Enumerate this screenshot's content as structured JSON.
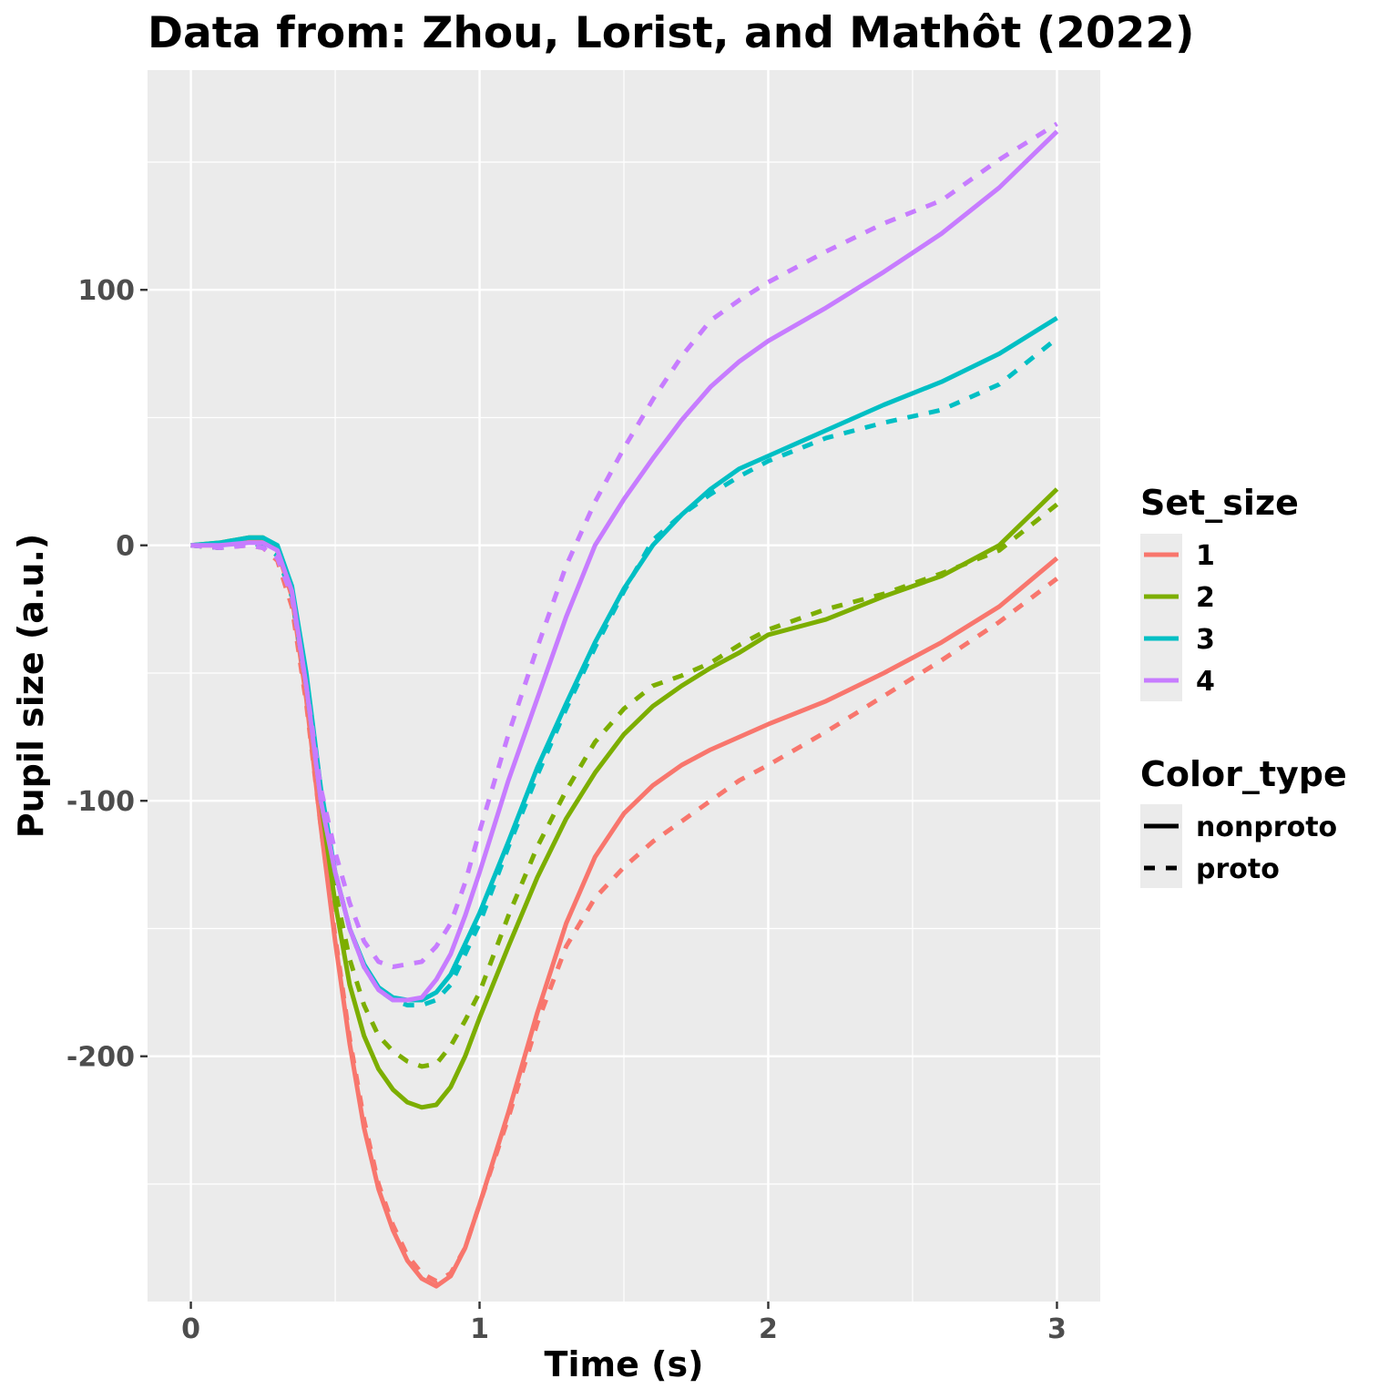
{
  "chart_data": {
    "type": "line",
    "title": "Data from: Zhou, Lorist, and Mathôt (2022)",
    "xlabel": "Time (s)",
    "ylabel": "Pupil size (a.u.)",
    "xlim": [
      -0.15,
      3.15
    ],
    "ylim": [
      -296,
      186
    ],
    "x_ticks": [
      0,
      1,
      2,
      3
    ],
    "y_ticks": [
      100,
      0,
      -100,
      -200
    ],
    "x_tick_labels": [
      "0",
      "1",
      "2",
      "3"
    ],
    "y_tick_labels": [
      "100",
      "0",
      "-100",
      "-200"
    ],
    "grid": true,
    "legend_position": "right",
    "colors": {
      "panel_bg": "#ebebeb",
      "grid": "#ffffff",
      "tick": "#333333",
      "1": "#f8766d",
      "2": "#7cae00",
      "3": "#00bfc4",
      "4": "#c77cff"
    },
    "legends": {
      "set_size": {
        "title": "Set_size",
        "items": [
          "1",
          "2",
          "3",
          "4"
        ]
      },
      "color_type": {
        "title": "Color_type",
        "items": [
          "nonproto",
          "proto"
        ]
      }
    },
    "x": [
      0,
      0.1,
      0.2,
      0.25,
      0.3,
      0.35,
      0.4,
      0.45,
      0.5,
      0.55,
      0.6,
      0.65,
      0.7,
      0.75,
      0.8,
      0.85,
      0.9,
      0.95,
      1.0,
      1.1,
      1.2,
      1.3,
      1.4,
      1.5,
      1.6,
      1.7,
      1.8,
      1.9,
      2.0,
      2.2,
      2.4,
      2.6,
      2.8,
      3.0
    ],
    "series": [
      {
        "set_size": "1",
        "color_type": "nonproto",
        "values": [
          0,
          0,
          2,
          2,
          -2,
          -20,
          -60,
          -110,
          -155,
          -195,
          -228,
          -252,
          -268,
          -280,
          -287,
          -290,
          -286,
          -275,
          -258,
          -222,
          -183,
          -148,
          -122,
          -105,
          -94,
          -86,
          -80,
          -75,
          -70,
          -61,
          -50,
          -38,
          -24,
          -5
        ]
      },
      {
        "set_size": "1",
        "color_type": "proto",
        "values": [
          0,
          -1,
          0,
          -1,
          -6,
          -24,
          -62,
          -110,
          -153,
          -193,
          -225,
          -250,
          -266,
          -278,
          -285,
          -288,
          -285,
          -275,
          -258,
          -224,
          -187,
          -157,
          -138,
          -126,
          -116,
          -108,
          -100,
          -92,
          -86,
          -73,
          -59,
          -45,
          -30,
          -13
        ]
      },
      {
        "set_size": "2",
        "color_type": "nonproto",
        "values": [
          0,
          1,
          3,
          3,
          -1,
          -18,
          -55,
          -100,
          -140,
          -172,
          -192,
          -205,
          -213,
          -218,
          -220,
          -219,
          -212,
          -200,
          -185,
          -157,
          -130,
          -107,
          -89,
          -74,
          -63,
          -55,
          -48,
          -42,
          -35,
          -29,
          -20,
          -12,
          0,
          22
        ]
      },
      {
        "set_size": "2",
        "color_type": "proto",
        "values": [
          0,
          -1,
          1,
          0,
          -4,
          -20,
          -55,
          -98,
          -135,
          -162,
          -180,
          -192,
          -198,
          -202,
          -204,
          -203,
          -196,
          -186,
          -175,
          -145,
          -118,
          -96,
          -77,
          -64,
          -55,
          -51,
          -46,
          -39,
          -33,
          -25,
          -19,
          -11,
          -2,
          16
        ]
      },
      {
        "set_size": "3",
        "color_type": "nonproto",
        "values": [
          0,
          1,
          3,
          3,
          0,
          -16,
          -50,
          -95,
          -128,
          -150,
          -164,
          -173,
          -177,
          -178,
          -178,
          -175,
          -168,
          -156,
          -144,
          -116,
          -87,
          -62,
          -38,
          -17,
          0,
          12,
          22,
          30,
          35,
          45,
          55,
          64,
          75,
          89
        ]
      },
      {
        "set_size": "3",
        "color_type": "proto",
        "values": [
          0,
          -1,
          1,
          0,
          -4,
          -20,
          -55,
          -98,
          -128,
          -150,
          -165,
          -174,
          -178,
          -180,
          -180,
          -178,
          -172,
          -160,
          -148,
          -118,
          -90,
          -64,
          -40,
          -18,
          2,
          12,
          20,
          27,
          33,
          42,
          48,
          53,
          63,
          81
        ]
      },
      {
        "set_size": "4",
        "color_type": "nonproto",
        "values": [
          0,
          0,
          1,
          1,
          -2,
          -18,
          -55,
          -100,
          -128,
          -150,
          -165,
          -174,
          -178,
          -178,
          -177,
          -170,
          -160,
          -145,
          -128,
          -92,
          -60,
          -28,
          0,
          18,
          34,
          49,
          62,
          72,
          80,
          93,
          107,
          122,
          140,
          162
        ]
      },
      {
        "set_size": "4",
        "color_type": "proto",
        "values": [
          0,
          -1,
          0,
          -1,
          -5,
          -20,
          -55,
          -95,
          -120,
          -140,
          -155,
          -163,
          -165,
          -164,
          -163,
          -157,
          -148,
          -132,
          -112,
          -74,
          -40,
          -8,
          17,
          38,
          57,
          74,
          88,
          96,
          103,
          115,
          126,
          135,
          151,
          165
        ]
      }
    ]
  }
}
